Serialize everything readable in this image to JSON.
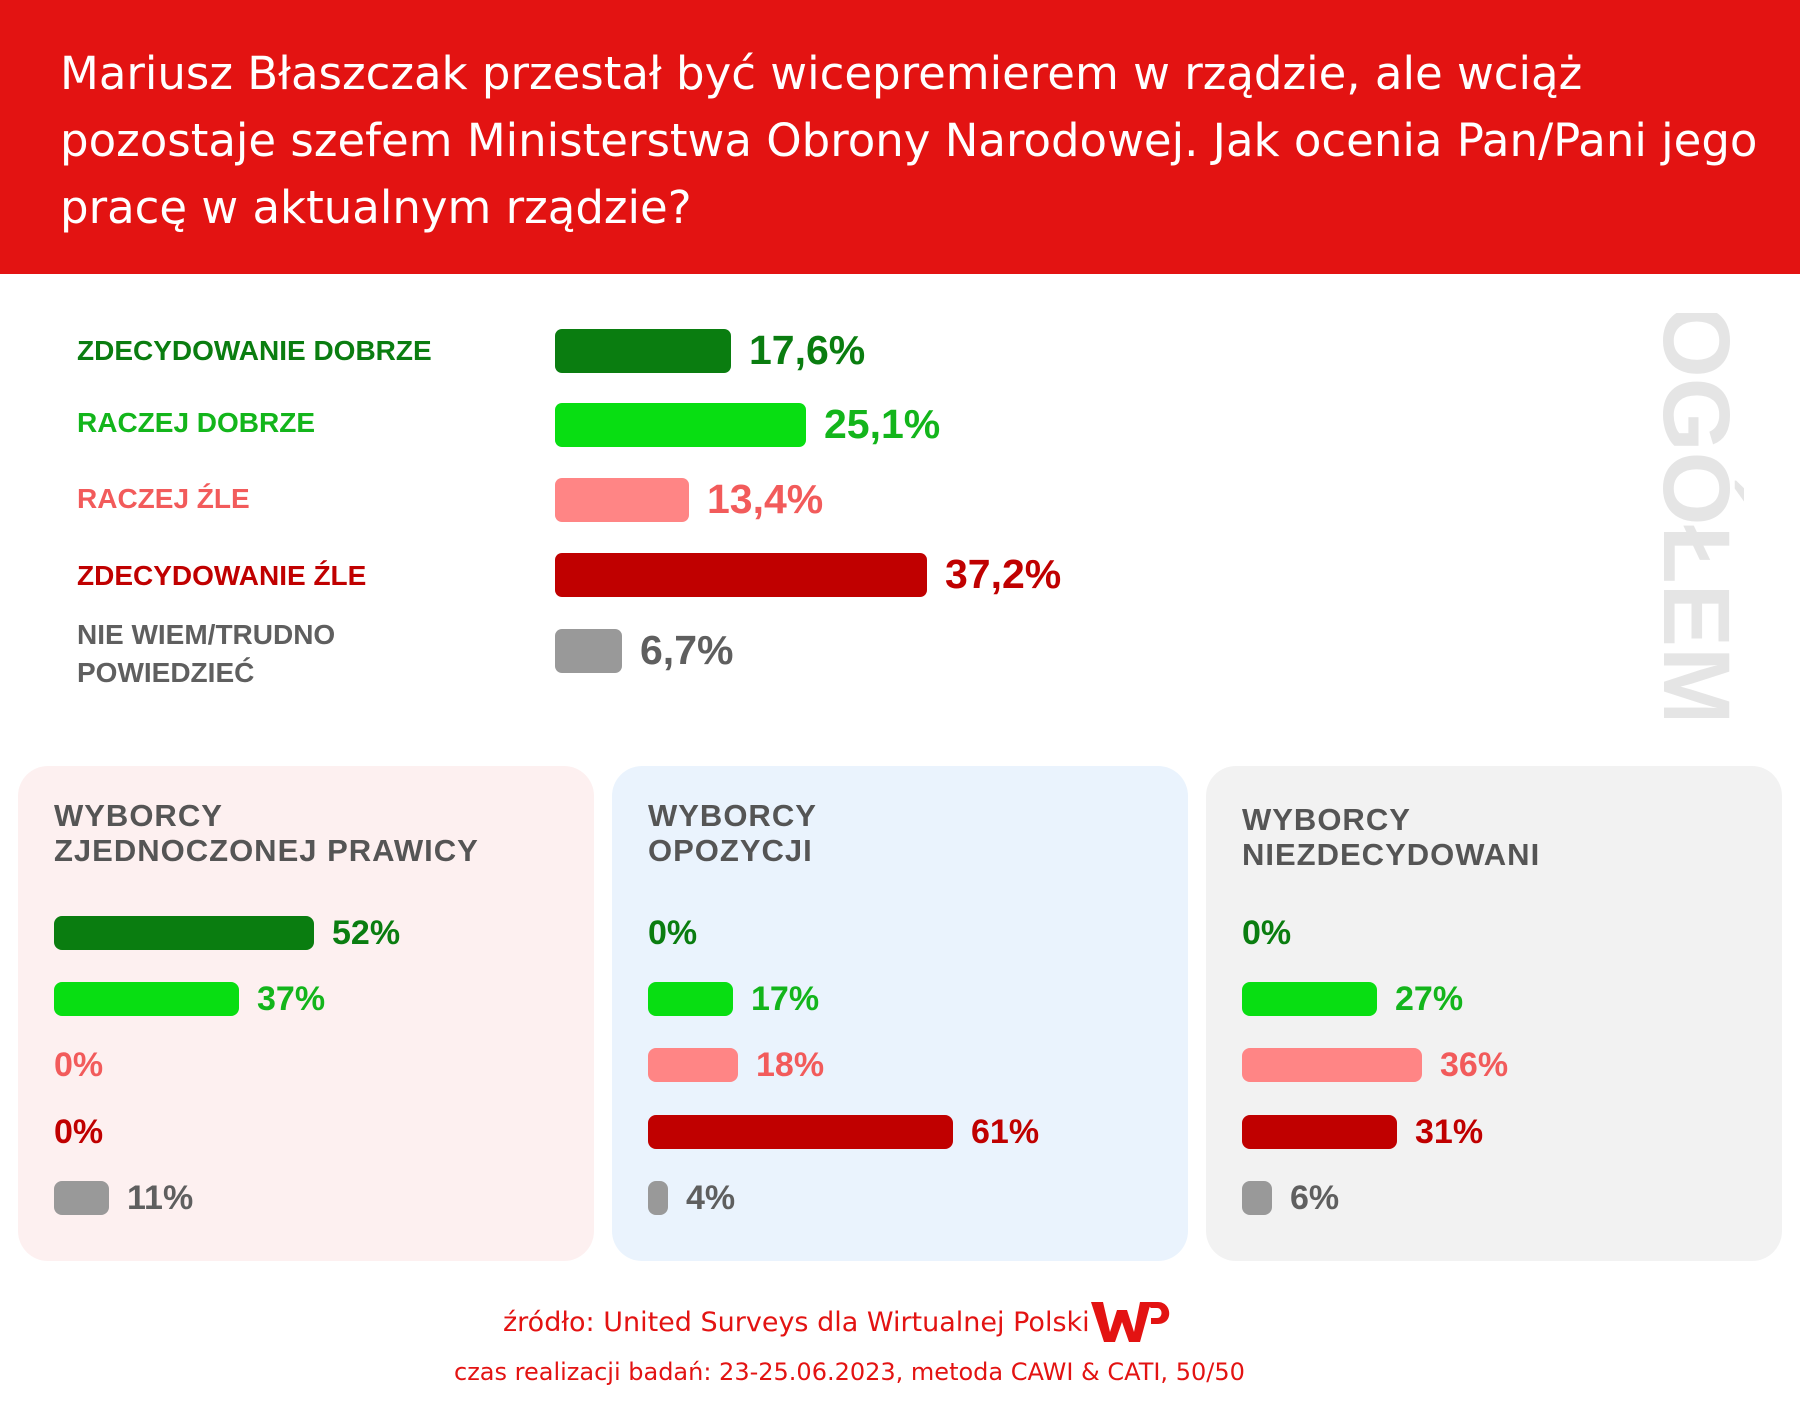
{
  "title": "Mariusz Błaszczak przestał być wicepremierem w rządzie, ale wciąż pozostaje szefem Ministerstwa Obrony Narodowej. Jak ocenia Pan/Pani jego pracę w aktualnym rządzie?",
  "side_label": "OGÓŁEM",
  "colors": {
    "header_bg": "#e31312",
    "zdecydowanie_dobrze": "#0a7d10",
    "raczej_dobrze": "#08de12",
    "raczej_zle": "#ff8585",
    "zdecydowanie_zle": "#c00000",
    "nie_wiem": "#999999",
    "label_raczej_dobrze": "#13b51b",
    "label_raczej_zle": "#f25b5b",
    "label_nie_wiem": "#5f5f5f",
    "side_label": "#e5e5e5"
  },
  "chart_data": [
    {
      "type": "bar",
      "orientation": "horizontal",
      "title": "",
      "categories": [
        "ZDECYDOWANIE DOBRZE",
        "RACZEJ DOBRZE",
        "RACZEJ ŹLE",
        "ZDECYDOWANIE ŹLE",
        "NIE WIEM/TRUDNO POWIEDZIEĆ"
      ],
      "values": [
        17.6,
        25.1,
        13.4,
        37.2,
        6.7
      ],
      "value_labels": [
        "17,6%",
        "25,1%",
        "13,4%",
        "37,2%",
        "6,7%"
      ]
    },
    {
      "type": "bar",
      "orientation": "horizontal",
      "title": "WYBORCY ZJEDNOCZONEJ PRAWICY",
      "title_lines": [
        "WYBORCY",
        "ZJEDNOCZONEJ PRAWICY"
      ],
      "categories": [
        "ZDECYDOWANIE DOBRZE",
        "RACZEJ DOBRZE",
        "RACZEJ ŹLE",
        "ZDECYDOWANIE ŹLE",
        "NIE WIEM/TRUDNO POWIEDZIEĆ"
      ],
      "values": [
        52,
        37,
        0,
        0,
        11
      ],
      "value_labels": [
        "52%",
        "37%",
        "0%",
        "0%",
        "11%"
      ],
      "background": "#fdf0f0"
    },
    {
      "type": "bar",
      "orientation": "horizontal",
      "title": "WYBORCY OPOZYCJI",
      "title_lines": [
        "WYBORCY",
        "OPOZYCJI"
      ],
      "categories": [
        "ZDECYDOWANIE DOBRZE",
        "RACZEJ DOBRZE",
        "RACZEJ ŹLE",
        "ZDECYDOWANIE ŹLE",
        "NIE WIEM/TRUDNO POWIEDZIEĆ"
      ],
      "values": [
        0,
        17,
        18,
        61,
        4
      ],
      "value_labels": [
        "0%",
        "17%",
        "18%",
        "61%",
        "4%"
      ],
      "background": "#eaf3fd"
    },
    {
      "type": "bar",
      "orientation": "horizontal",
      "title": "WYBORCY NIEZDECYDOWANI",
      "title_lines": [
        "WYBORCY",
        "NIEZDECYDOWANI"
      ],
      "categories": [
        "ZDECYDOWANIE DOBRZE",
        "RACZEJ DOBRZE",
        "RACZEJ ŹLE",
        "ZDECYDOWANIE ŹLE",
        "NIE WIEM/TRUDNO POWIEDZIEĆ"
      ],
      "values": [
        0,
        27,
        36,
        31,
        6
      ],
      "value_labels": [
        "0%",
        "27%",
        "36%",
        "31%",
        "6%"
      ],
      "background": "#f2f2f2"
    }
  ],
  "footer": {
    "source": "źródło: United Surveys dla Wirtualnej Polski",
    "details": "czas realizacji badań: 23-25.06.2023, metoda CAWI & CATI, 50/50"
  }
}
